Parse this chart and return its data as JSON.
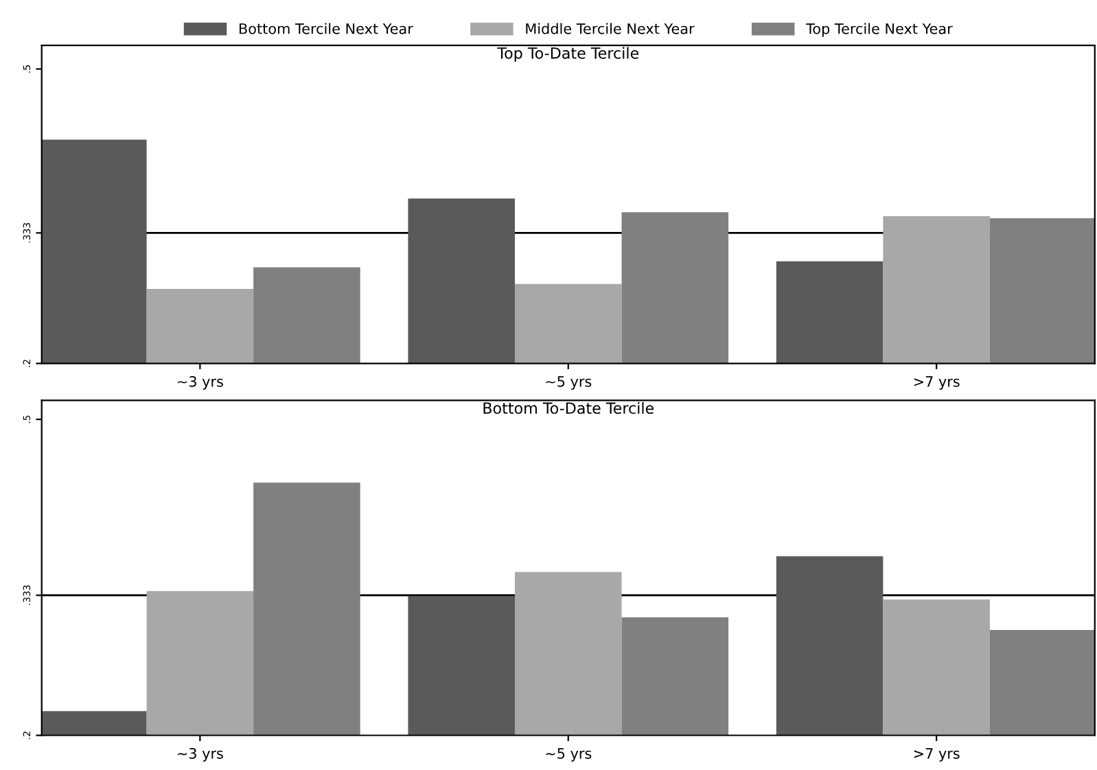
{
  "chart_data": [
    {
      "type": "bar",
      "title": "Top To-Date Tercile",
      "categories": [
        "~3 yrs",
        "~5 yrs",
        ">7 yrs"
      ],
      "series": [
        {
          "name": "Bottom Tercile Next Year",
          "color": "#5a5a5a",
          "values": [
            0.428,
            0.368,
            0.304
          ]
        },
        {
          "name": "Middle Tercile Next Year",
          "color": "#a8a8a8",
          "values": [
            0.276,
            0.281,
            0.35
          ]
        },
        {
          "name": "Top Tercile Next Year",
          "color": "#808080",
          "values": [
            0.298,
            0.354,
            0.348
          ]
        }
      ],
      "ylim": [
        0.2,
        0.524
      ],
      "yticks": [
        {
          "value": 0.2,
          "label": ".2"
        },
        {
          "value": 0.333,
          "label": ".333"
        },
        {
          "value": 0.5,
          "label": ".5"
        }
      ],
      "ref_lines": [
        {
          "axis": "y",
          "value": 0.333,
          "color": "#000000"
        }
      ],
      "legend": "top",
      "grid": false
    },
    {
      "type": "bar",
      "title": "Bottom To-Date Tercile",
      "categories": [
        "~3 yrs",
        "~5 yrs",
        ">7 yrs"
      ],
      "series": [
        {
          "color": "#5a5a5a",
          "values": [
            0.223,
            0.332,
            0.37
          ]
        },
        {
          "color": "#a8a8a8",
          "values": [
            0.337,
            0.355,
            0.329
          ]
        },
        {
          "color": "#808080",
          "values": [
            0.44,
            0.312,
            0.3
          ]
        }
      ],
      "ylim": [
        0.2,
        0.518
      ],
      "yticks": [
        {
          "value": 0.2,
          "label": ".2"
        },
        {
          "value": 0.333,
          "label": ".333"
        },
        {
          "value": 0.5,
          "label": ".5"
        }
      ],
      "ref_lines": [
        {
          "axis": "y",
          "value": 0.333,
          "color": "#000000"
        }
      ],
      "legend": false,
      "grid": false
    }
  ]
}
